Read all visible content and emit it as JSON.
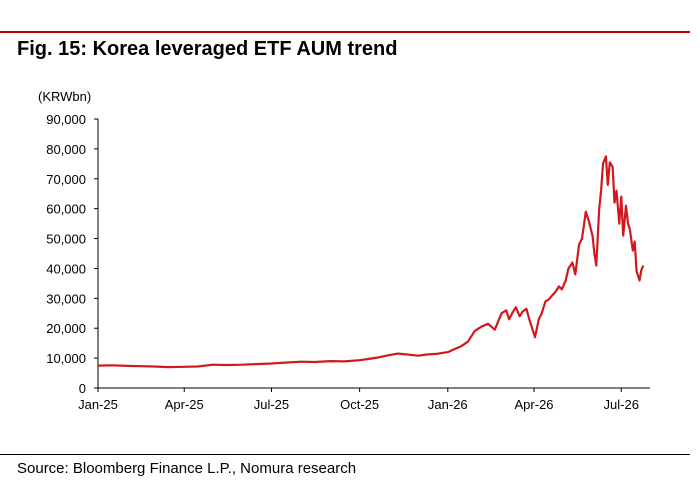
{
  "figure": {
    "title": "Fig. 15: Korea leveraged ETF AUM trend",
    "source": "Source: Bloomberg Finance L.P., Nomura research"
  },
  "colors": {
    "line": "#d0191e",
    "rule": "#c00000",
    "axis": "#000000"
  },
  "chart_data": {
    "type": "line",
    "title": "Fig. 15: Korea leveraged ETF AUM trend",
    "ylabel": "(KRWbn)",
    "xlabel": "",
    "ylim": [
      0,
      90000
    ],
    "xlim": [
      "2025-01-01",
      "2026-07-31"
    ],
    "yticks": [
      0,
      10000,
      20000,
      30000,
      40000,
      50000,
      60000,
      70000,
      80000,
      90000
    ],
    "ytick_labels": [
      "0",
      "10,000",
      "20,000",
      "30,000",
      "40,000",
      "50,000",
      "60,000",
      "70,000",
      "80,000",
      "90,000"
    ],
    "xticks": [
      "2025-01-01",
      "2025-04-01",
      "2025-07-01",
      "2025-10-01",
      "2026-01-01",
      "2026-04-01",
      "2026-07-01"
    ],
    "xtick_labels": [
      "Jan-25",
      "Apr-25",
      "Jul-25",
      "Oct-25",
      "Jan-26",
      "Apr-26",
      "Jul-26"
    ],
    "grid": false,
    "legend": "none",
    "series": [
      {
        "x": [
          "2025-01-01",
          "2025-01-15",
          "2025-02-01",
          "2025-02-15",
          "2025-03-01",
          "2025-03-15",
          "2025-04-01",
          "2025-04-15",
          "2025-05-01",
          "2025-05-15",
          "2025-06-01",
          "2025-06-15",
          "2025-07-01",
          "2025-07-15",
          "2025-08-01",
          "2025-08-15",
          "2025-09-01",
          "2025-09-15",
          "2025-10-01",
          "2025-10-10",
          "2025-10-20",
          "2025-11-01",
          "2025-11-10",
          "2025-11-20",
          "2025-12-01",
          "2025-12-10",
          "2025-12-20",
          "2026-01-01",
          "2026-01-08",
          "2026-01-15",
          "2026-01-22",
          "2026-01-29",
          "2026-02-05",
          "2026-02-12",
          "2026-02-19",
          "2026-02-26",
          "2026-03-03",
          "2026-03-06",
          "2026-03-10",
          "2026-03-13",
          "2026-03-17",
          "2026-03-20",
          "2026-03-24",
          "2026-03-27",
          "2026-03-31",
          "2026-04-02",
          "2026-04-06",
          "2026-04-09",
          "2026-04-13",
          "2026-04-16",
          "2026-04-20",
          "2026-04-23",
          "2026-04-27",
          "2026-04-30",
          "2026-05-04",
          "2026-05-07",
          "2026-05-11",
          "2026-05-14",
          "2026-05-18",
          "2026-05-21",
          "2026-05-25",
          "2026-05-28",
          "2026-06-01",
          "2026-06-03",
          "2026-06-05",
          "2026-06-08",
          "2026-06-10",
          "2026-06-12",
          "2026-06-15",
          "2026-06-17",
          "2026-06-19",
          "2026-06-22",
          "2026-06-24",
          "2026-06-26",
          "2026-06-29",
          "2026-07-01",
          "2026-07-03",
          "2026-07-06",
          "2026-07-08",
          "2026-07-10",
          "2026-07-13",
          "2026-07-15",
          "2026-07-17",
          "2026-07-20",
          "2026-07-22",
          "2026-07-24"
        ],
        "values": [
          7500,
          7600,
          7400,
          7300,
          7200,
          7000,
          7100,
          7200,
          7800,
          7700,
          7800,
          8000,
          8200,
          8500,
          8800,
          8700,
          9000,
          8900,
          9300,
          9700,
          10200,
          11000,
          11500,
          11200,
          10800,
          11200,
          11400,
          12000,
          13000,
          14000,
          15500,
          19000,
          20500,
          21500,
          19500,
          25000,
          26000,
          23000,
          25500,
          27000,
          24000,
          25500,
          26500,
          23000,
          19000,
          17000,
          23000,
          25000,
          29000,
          29500,
          31000,
          32000,
          34000,
          33000,
          36000,
          40000,
          42000,
          38000,
          48000,
          50000,
          59000,
          56000,
          51000,
          45000,
          41000,
          60000,
          66000,
          75000,
          77500,
          68000,
          75500,
          74000,
          62000,
          66000,
          55000,
          64000,
          51000,
          61000,
          55000,
          53000,
          46000,
          49000,
          39000,
          36000,
          39500,
          41000
        ]
      }
    ]
  }
}
